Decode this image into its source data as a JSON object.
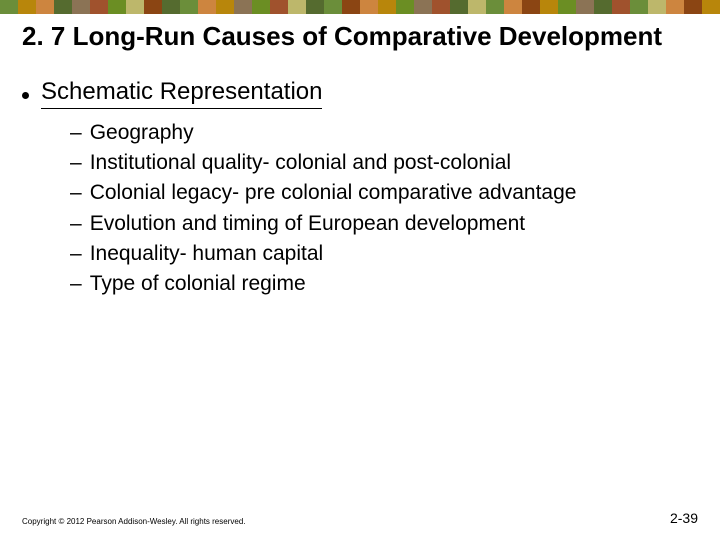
{
  "border_colors": [
    "#6b8e3a",
    "#b8860b",
    "#cd853f",
    "#556b2f",
    "#8b7355",
    "#a0522d",
    "#6b8e23",
    "#bdb76b",
    "#8b4513",
    "#556b2f",
    "#6b8e3a",
    "#cd853f",
    "#b8860b",
    "#8b7355",
    "#6b8e23",
    "#a0522d",
    "#bdb76b",
    "#556b2f",
    "#6b8e3a",
    "#8b4513",
    "#cd853f",
    "#b8860b",
    "#6b8e23",
    "#8b7355",
    "#a0522d",
    "#556b2f",
    "#bdb76b",
    "#6b8e3a",
    "#cd853f",
    "#8b4513",
    "#b8860b",
    "#6b8e23",
    "#8b7355",
    "#556b2f",
    "#a0522d",
    "#6b8e3a",
    "#bdb76b",
    "#cd853f",
    "#8b4513",
    "#b8860b"
  ],
  "title": "2. 7 Long-Run Causes of Comparative Development",
  "heading": "Schematic Representation",
  "items": [
    "Geography",
    "Institutional quality- colonial and post-colonial",
    "Colonial legacy- pre colonial comparative advantage",
    "Evolution and timing of European development",
    "Inequality- human capital",
    "Type of colonial regime"
  ],
  "copyright": "Copyright © 2012 Pearson Addison-Wesley. All rights reserved.",
  "page_number": "2-39",
  "colors": {
    "text": "#000000",
    "background": "#ffffff"
  },
  "typography": {
    "title_fontsize": 26,
    "heading_fontsize": 24,
    "item_fontsize": 21,
    "copyright_fontsize": 8,
    "pagenum_fontsize": 14,
    "font_family": "Verdana"
  }
}
